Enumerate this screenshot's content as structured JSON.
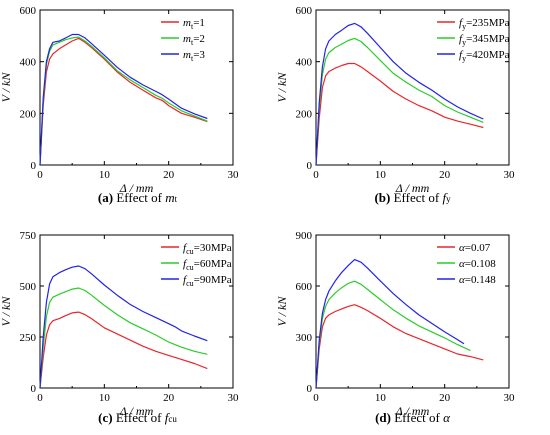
{
  "charts": [
    {
      "type": "line",
      "xlabel": "Δ / mm",
      "ylabel": "V / kN",
      "xlim": [
        0,
        30
      ],
      "ylim": [
        0,
        600
      ],
      "xticks": [
        0,
        10,
        20,
        30
      ],
      "yticks": [
        0,
        200,
        400,
        600
      ],
      "caption": {
        "letter": "(a)",
        "text": "Effect of ",
        "var": "m",
        "sub": "t"
      },
      "legend": [
        {
          "prefix": "m",
          "sub": "t",
          "suffix": "=1"
        },
        {
          "prefix": "m",
          "sub": "t",
          "suffix": "=2"
        },
        {
          "prefix": "m",
          "sub": "t",
          "suffix": "=3"
        }
      ],
      "series": [
        {
          "color": "#e8262a",
          "x": [
            0,
            0.5,
            1,
            1.5,
            2,
            3,
            4,
            5,
            6,
            7,
            8,
            10,
            12,
            14,
            16,
            18,
            19,
            20,
            22,
            24,
            26
          ],
          "y": [
            0,
            230,
            360,
            410,
            430,
            450,
            465,
            480,
            490,
            475,
            455,
            410,
            360,
            320,
            290,
            260,
            250,
            230,
            200,
            185,
            168
          ]
        },
        {
          "color": "#2bcc2b",
          "x": [
            0,
            0.5,
            1,
            1.5,
            2,
            3,
            4,
            5,
            6,
            7,
            8,
            10,
            12,
            14,
            16,
            18,
            19,
            20,
            22,
            24,
            26
          ],
          "y": [
            0,
            250,
            390,
            440,
            465,
            475,
            485,
            492,
            495,
            480,
            460,
            415,
            365,
            330,
            300,
            270,
            258,
            240,
            210,
            190,
            170
          ]
        },
        {
          "color": "#2323e6",
          "x": [
            0,
            0.5,
            1,
            1.5,
            2,
            3,
            4,
            5,
            6,
            7,
            8,
            10,
            12,
            14,
            16,
            18,
            19,
            20,
            22,
            24,
            26
          ],
          "y": [
            0,
            260,
            400,
            450,
            475,
            480,
            492,
            505,
            505,
            492,
            470,
            425,
            378,
            340,
            310,
            285,
            272,
            255,
            220,
            198,
            180
          ]
        }
      ]
    },
    {
      "type": "line",
      "xlabel": "Δ / mm",
      "ylabel": "V / kN",
      "xlim": [
        0,
        30
      ],
      "ylim": [
        0,
        600
      ],
      "xticks": [
        0,
        10,
        20,
        30
      ],
      "yticks": [
        0,
        200,
        400,
        600
      ],
      "caption": {
        "letter": "(b)",
        "text": "Effect of ",
        "var": "f",
        "sub": "y"
      },
      "legend": [
        {
          "prefix": "f",
          "sub": "y",
          "suffix": "=235MPa"
        },
        {
          "prefix": "f",
          "sub": "y",
          "suffix": "=345MPa"
        },
        {
          "prefix": "f",
          "sub": "y",
          "suffix": "=420MPa"
        }
      ],
      "series": [
        {
          "color": "#e8262a",
          "x": [
            0,
            0.5,
            1,
            1.5,
            2,
            3,
            4,
            5,
            6,
            7,
            8,
            10,
            12,
            14,
            16,
            18,
            20,
            22,
            24,
            26
          ],
          "y": [
            0,
            180,
            300,
            345,
            362,
            375,
            385,
            393,
            393,
            380,
            362,
            325,
            285,
            255,
            230,
            210,
            185,
            170,
            158,
            145
          ]
        },
        {
          "color": "#2bcc2b",
          "x": [
            0,
            0.5,
            1,
            1.5,
            2,
            3,
            4,
            5,
            6,
            7,
            8,
            10,
            12,
            14,
            16,
            18,
            20,
            22,
            24,
            26
          ],
          "y": [
            0,
            220,
            350,
            410,
            435,
            455,
            468,
            482,
            490,
            478,
            455,
            405,
            355,
            320,
            290,
            265,
            230,
            205,
            185,
            165
          ]
        },
        {
          "color": "#2323e6",
          "x": [
            0,
            0.5,
            1,
            1.5,
            2,
            3,
            4,
            5,
            6,
            7,
            8,
            10,
            12,
            14,
            16,
            18,
            20,
            22,
            24,
            26
          ],
          "y": [
            0,
            240,
            380,
            450,
            480,
            505,
            522,
            540,
            548,
            535,
            510,
            455,
            400,
            355,
            320,
            290,
            255,
            225,
            200,
            178
          ]
        }
      ]
    },
    {
      "type": "line",
      "xlabel": "Δ / mm",
      "ylabel": "V / kN",
      "xlim": [
        0,
        30
      ],
      "ylim": [
        0,
        750
      ],
      "xticks": [
        0,
        10,
        20,
        30
      ],
      "yticks": [
        0,
        250,
        500,
        750
      ],
      "caption": {
        "letter": "(c)",
        "text": "Effect of ",
        "var": "f",
        "sub": "cu"
      },
      "legend": [
        {
          "prefix": "f",
          "sub": "cu",
          "suffix": "=30MPa"
        },
        {
          "prefix": "f",
          "sub": "cu",
          "suffix": "=60MPa"
        },
        {
          "prefix": "f",
          "sub": "cu",
          "suffix": "=90MPa"
        }
      ],
      "series": [
        {
          "color": "#e8262a",
          "x": [
            0,
            0.5,
            1,
            1.5,
            2,
            3,
            4,
            5,
            6,
            7,
            8,
            10,
            12,
            14,
            16,
            18,
            20,
            22,
            24,
            26
          ],
          "y": [
            0,
            150,
            260,
            310,
            330,
            340,
            355,
            368,
            372,
            360,
            340,
            295,
            265,
            235,
            205,
            180,
            160,
            140,
            120,
            95
          ]
        },
        {
          "color": "#2bcc2b",
          "x": [
            0,
            0.5,
            1,
            1.5,
            2,
            3,
            4,
            5,
            6,
            7,
            8,
            10,
            12,
            14,
            16,
            18,
            20,
            22,
            24,
            26
          ],
          "y": [
            0,
            200,
            350,
            420,
            445,
            460,
            472,
            485,
            490,
            478,
            455,
            405,
            360,
            320,
            290,
            260,
            225,
            200,
            180,
            165
          ]
        },
        {
          "color": "#2323e6",
          "x": [
            0,
            0.5,
            1,
            1.5,
            2,
            3,
            4,
            5,
            6,
            7,
            8,
            10,
            12,
            14,
            16,
            18,
            20,
            21,
            22,
            24,
            26
          ],
          "y": [
            0,
            250,
            420,
            510,
            545,
            565,
            580,
            592,
            598,
            585,
            560,
            505,
            455,
            410,
            375,
            345,
            315,
            300,
            280,
            255,
            232
          ]
        }
      ]
    },
    {
      "type": "line",
      "xlabel": "Δ / mm",
      "ylabel": "V / kN",
      "xlim": [
        0,
        30
      ],
      "ylim": [
        0,
        900
      ],
      "xticks": [
        0,
        10,
        20,
        30
      ],
      "yticks": [
        0,
        300,
        600,
        900
      ],
      "caption": {
        "letter": "(d)",
        "text": "Effect of ",
        "var": "α",
        "sub": ""
      },
      "legend": [
        {
          "prefix": "α",
          "sub": "",
          "suffix": "=0.07"
        },
        {
          "prefix": "α",
          "sub": "",
          "suffix": "=0.108"
        },
        {
          "prefix": "α",
          "sub": "",
          "suffix": "=0.148"
        }
      ],
      "series": [
        {
          "color": "#e8262a",
          "x": [
            0,
            0.5,
            1,
            1.5,
            2,
            3,
            4,
            5,
            6,
            7,
            8,
            10,
            12,
            14,
            16,
            18,
            20,
            22,
            24,
            26
          ],
          "y": [
            0,
            230,
            360,
            410,
            430,
            450,
            465,
            480,
            490,
            475,
            455,
            410,
            360,
            320,
            290,
            260,
            230,
            200,
            185,
            165
          ]
        },
        {
          "color": "#2bcc2b",
          "x": [
            0,
            0.5,
            1,
            1.5,
            2,
            3,
            4,
            5,
            6,
            7,
            8,
            10,
            12,
            14,
            16,
            18,
            20,
            22,
            24
          ],
          "y": [
            0,
            260,
            410,
            480,
            520,
            560,
            590,
            615,
            628,
            610,
            580,
            520,
            460,
            410,
            365,
            330,
            295,
            255,
            220
          ]
        },
        {
          "color": "#2323e6",
          "x": [
            0,
            0.5,
            1,
            1.5,
            2,
            3,
            4,
            5,
            6,
            7,
            8,
            10,
            12,
            14,
            16,
            18,
            20,
            22,
            23
          ],
          "y": [
            0,
            280,
            440,
            520,
            570,
            630,
            680,
            720,
            755,
            740,
            705,
            630,
            555,
            490,
            430,
            380,
            330,
            285,
            260
          ]
        }
      ]
    }
  ]
}
